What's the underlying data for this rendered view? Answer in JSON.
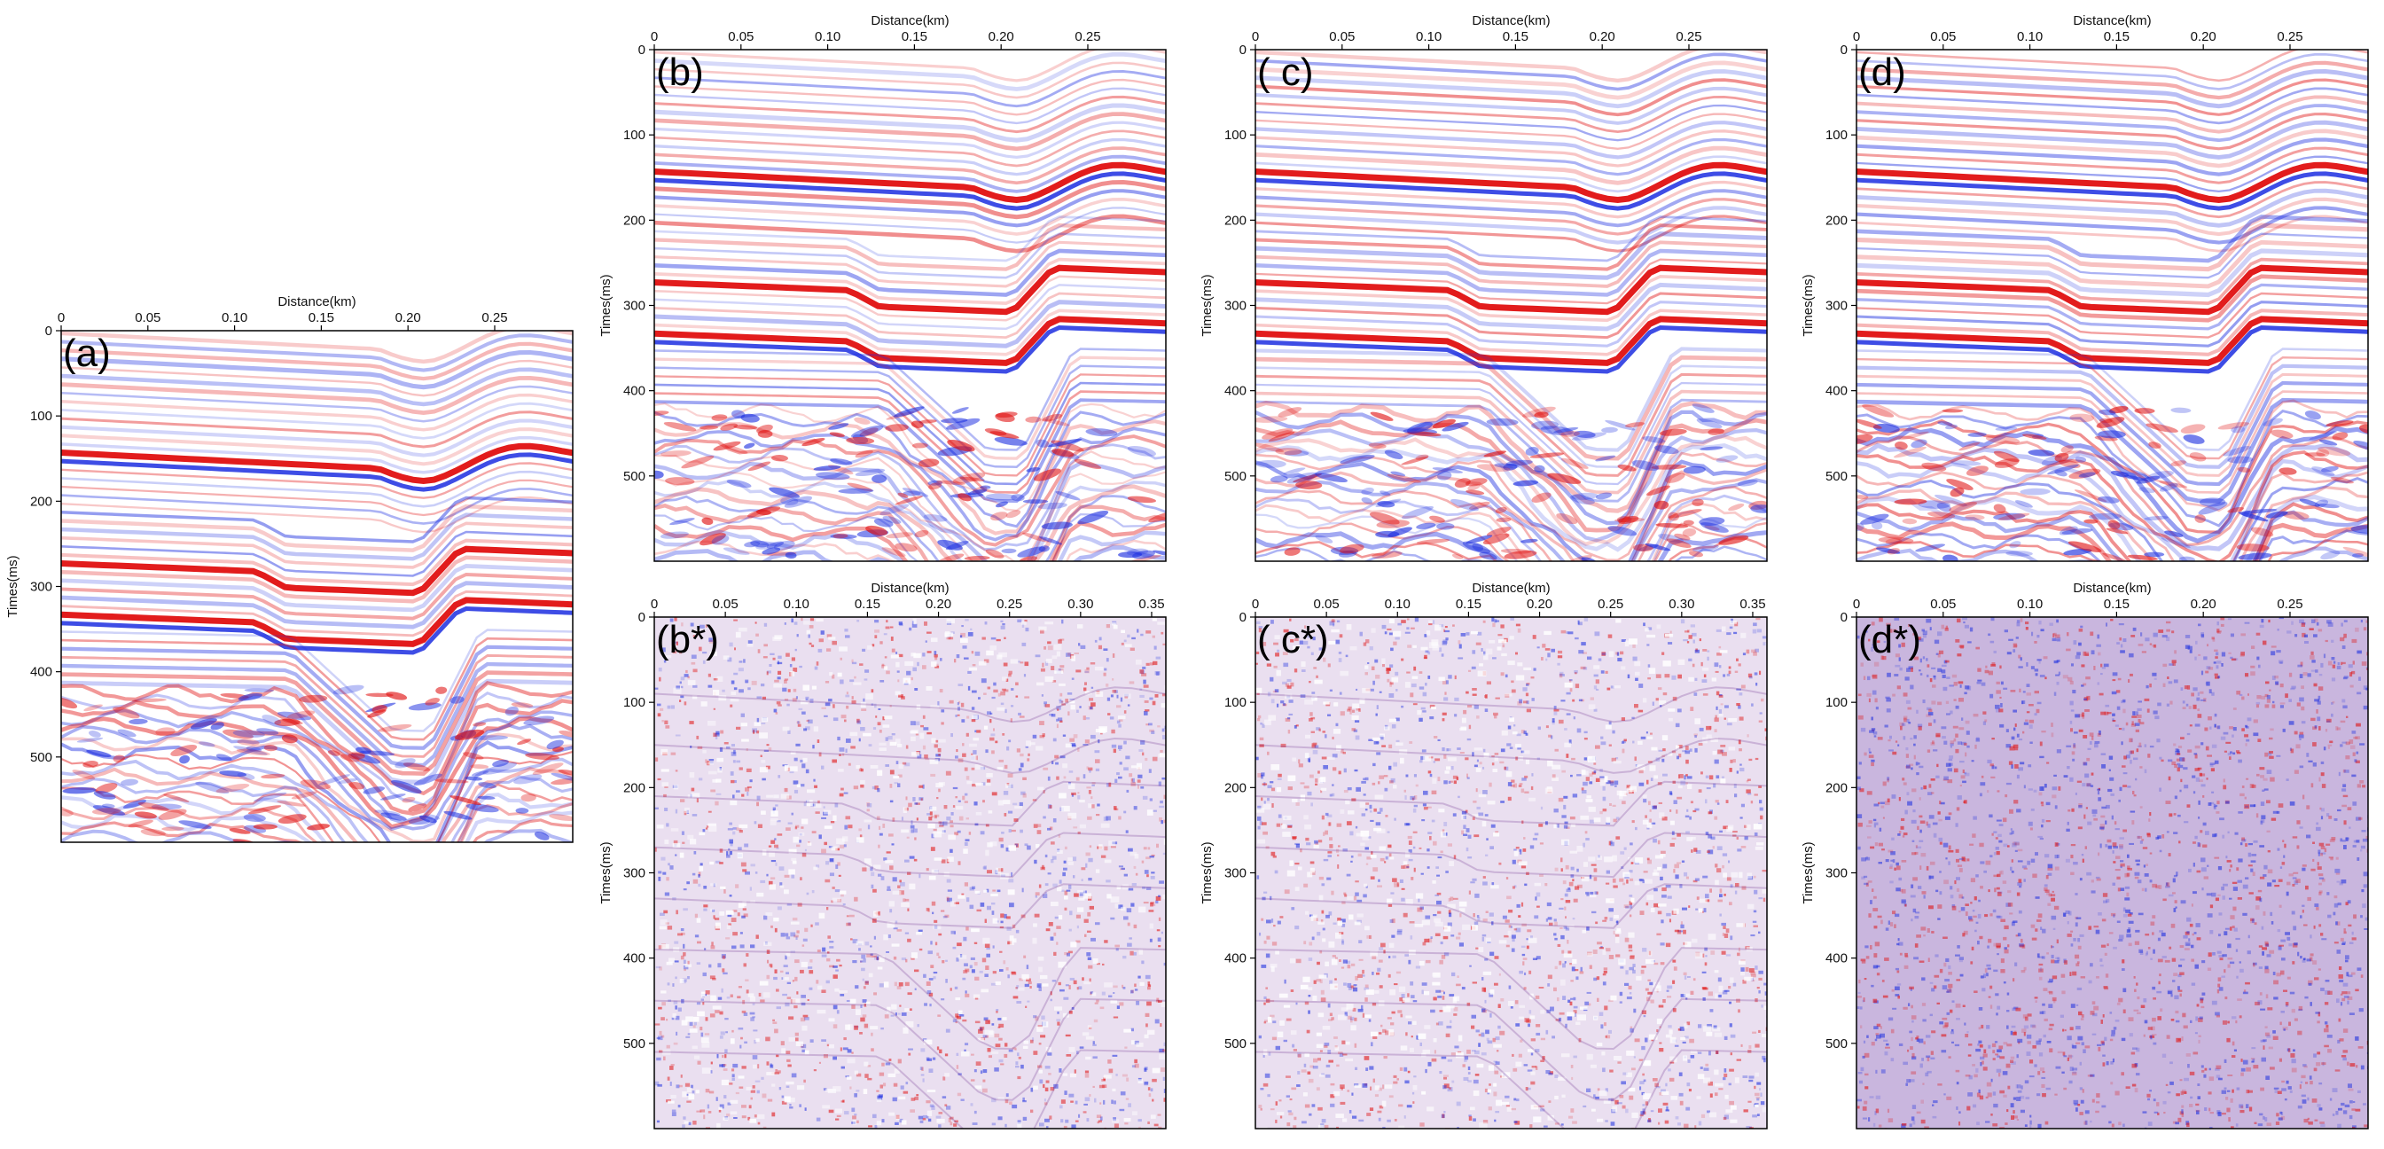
{
  "x_axis_label": "Distance(km)",
  "y_axis_label": "Times(ms)",
  "colors": {
    "positive": "#e01010",
    "negative": "#1c2ee0",
    "background": "#ffffff",
    "frame": "#000000"
  },
  "time_axis": {
    "min": 0,
    "max": 600,
    "ticks": [
      0,
      100,
      200,
      300,
      400,
      500
    ]
  },
  "panels": [
    {
      "id": "a",
      "label": "(a)",
      "kind": "section",
      "x_max": 0.295,
      "x_ticks": [
        "0",
        "0.05",
        "0.10",
        "0.15",
        "0.20",
        "0.25"
      ]
    },
    {
      "id": "b",
      "label": "(b)",
      "kind": "section",
      "x_max": 0.295,
      "x_ticks": [
        "0",
        "0.05",
        "0.10",
        "0.15",
        "0.20",
        "0.25"
      ]
    },
    {
      "id": "c",
      "label": "( c)",
      "kind": "section",
      "x_max": 0.295,
      "x_ticks": [
        "0",
        "0.05",
        "0.10",
        "0.15",
        "0.20",
        "0.25"
      ]
    },
    {
      "id": "d",
      "label": "(d)",
      "kind": "section",
      "x_max": 0.295,
      "x_ticks": [
        "0",
        "0.05",
        "0.10",
        "0.15",
        "0.20",
        "0.25"
      ]
    },
    {
      "id": "bs",
      "label": "(b*)",
      "kind": "residual",
      "x_max": 0.36,
      "x_ticks": [
        "0",
        "0.05",
        "0.10",
        "0.15",
        "0.20",
        "0.25",
        "0.30",
        "0.35"
      ]
    },
    {
      "id": "cs",
      "label": "( c*)",
      "kind": "residual",
      "x_max": 0.36,
      "x_ticks": [
        "0",
        "0.05",
        "0.10",
        "0.15",
        "0.20",
        "0.25",
        "0.30",
        "0.35"
      ]
    },
    {
      "id": "ds",
      "label": "(d*)",
      "kind": "noise",
      "x_max": 0.295,
      "x_ticks": [
        "0",
        "0.05",
        "0.10",
        "0.15",
        "0.20",
        "0.25"
      ]
    }
  ],
  "icons": [
    "seismic-section-image",
    "residual-noise-image"
  ]
}
